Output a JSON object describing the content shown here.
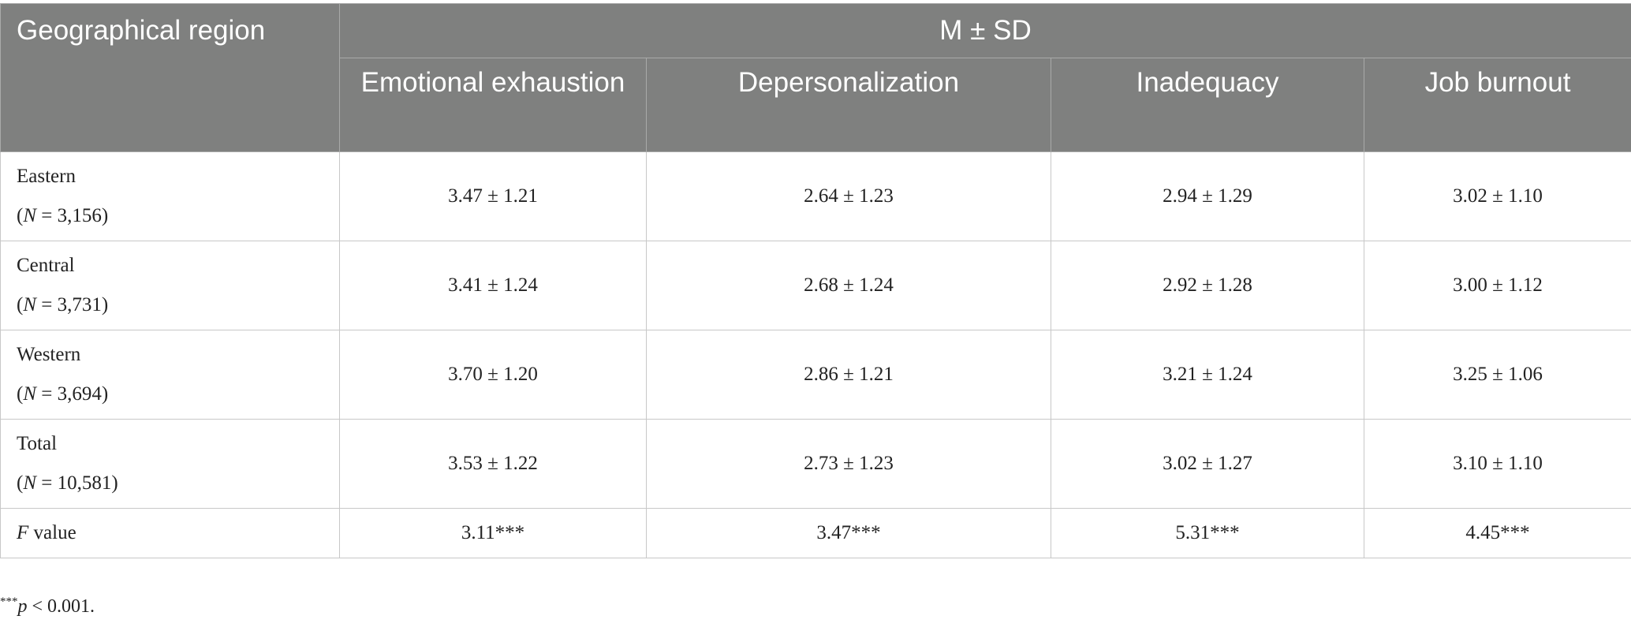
{
  "table": {
    "header": {
      "region": "Geographical region",
      "group": "M ± SD",
      "columns": [
        "Emotional exhaustion",
        "Depersonalization",
        "Inadequacy",
        "Job burnout"
      ]
    },
    "rows": [
      {
        "label": "Eastern",
        "n_open": "(",
        "n_symbol": "N",
        "n_rest": " = 3,156)",
        "cells": [
          "3.47 ± 1.21",
          "2.64 ± 1.23",
          "2.94 ± 1.29",
          "3.02 ± 1.10"
        ]
      },
      {
        "label": "Central",
        "n_open": "(",
        "n_symbol": "N",
        "n_rest": " = 3,731)",
        "cells": [
          "3.41 ± 1.24",
          "2.68 ± 1.24",
          "2.92 ± 1.28",
          "3.00 ± 1.12"
        ]
      },
      {
        "label": "Western",
        "n_open": "(",
        "n_symbol": "N",
        "n_rest": " = 3,694)",
        "cells": [
          "3.70 ± 1.20",
          "2.86 ± 1.21",
          "3.21 ± 1.24",
          "3.25 ± 1.06"
        ]
      },
      {
        "label": "Total",
        "n_open": "(",
        "n_symbol": "N",
        "n_rest": " = 10,581)",
        "cells": [
          "3.53 ± 1.22",
          "2.73 ± 1.23",
          "3.02 ± 1.27",
          "3.10 ± 1.10"
        ]
      }
    ],
    "f_row": {
      "symbol": "F",
      "label": " value",
      "cells": [
        "3.11***",
        "3.47***",
        "5.31***",
        "4.45***"
      ]
    }
  },
  "footnote": {
    "stars": "***",
    "symbol": "p",
    "text": " < 0.001."
  }
}
